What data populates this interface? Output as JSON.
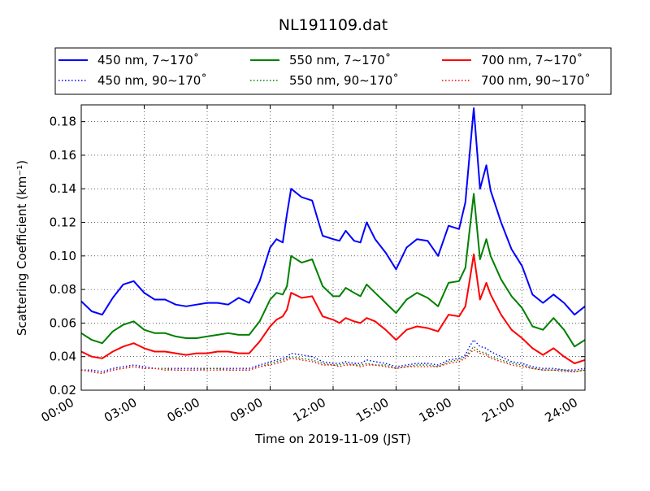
{
  "chart_data": {
    "type": "line",
    "title": "NL191109.dat",
    "xlabel": "Time on 2019-11-09 (JST)",
    "ylabel": "Scattering Coefficient (km⁻¹)",
    "xlim": [
      0,
      24
    ],
    "ylim": [
      0.02,
      0.19
    ],
    "xticks": [
      0,
      3,
      6,
      9,
      12,
      15,
      18,
      21,
      24
    ],
    "xtick_labels": [
      "00:00",
      "03:00",
      "06:00",
      "09:00",
      "12:00",
      "15:00",
      "18:00",
      "21:00",
      "24:00"
    ],
    "yticks": [
      0.02,
      0.04,
      0.06,
      0.08,
      0.1,
      0.12,
      0.14,
      0.16,
      0.18
    ],
    "ytick_labels": [
      "0.02",
      "0.04",
      "0.06",
      "0.08",
      "0.10",
      "0.12",
      "0.14",
      "0.16",
      "0.18"
    ],
    "grid": true,
    "legend_position": "top",
    "x": [
      0,
      0.5,
      1,
      1.5,
      2,
      2.5,
      3,
      3.5,
      4,
      4.5,
      5,
      5.5,
      6,
      6.5,
      7,
      7.5,
      8,
      8.5,
      9,
      9.3,
      9.6,
      9.8,
      10,
      10.5,
      11,
      11.5,
      12,
      12.3,
      12.6,
      13,
      13.3,
      13.6,
      14,
      14.5,
      15,
      15.5,
      16,
      16.5,
      17,
      17.5,
      18,
      18.3,
      18.5,
      18.7,
      19,
      19.3,
      19.5,
      20,
      20.5,
      21,
      21.5,
      22,
      22.5,
      23,
      23.5,
      24
    ],
    "series": [
      {
        "name": "450 nm, 7∼170˚",
        "color": "#0000ff",
        "style": "solid",
        "values": [
          0.073,
          0.067,
          0.065,
          0.075,
          0.083,
          0.085,
          0.078,
          0.074,
          0.074,
          0.071,
          0.07,
          0.071,
          0.072,
          0.072,
          0.071,
          0.075,
          0.072,
          0.085,
          0.105,
          0.11,
          0.108,
          0.125,
          0.14,
          0.135,
          0.133,
          0.112,
          0.11,
          0.109,
          0.115,
          0.109,
          0.108,
          0.12,
          0.11,
          0.102,
          0.092,
          0.105,
          0.11,
          0.109,
          0.1,
          0.118,
          0.116,
          0.132,
          0.16,
          0.188,
          0.14,
          0.154,
          0.139,
          0.12,
          0.104,
          0.094,
          0.077,
          0.072,
          0.077,
          0.072,
          0.065,
          0.07
        ]
      },
      {
        "name": "550 nm, 7∼170˚",
        "color": "#008000",
        "style": "solid",
        "values": [
          0.054,
          0.05,
          0.048,
          0.055,
          0.059,
          0.061,
          0.056,
          0.054,
          0.054,
          0.052,
          0.051,
          0.051,
          0.052,
          0.053,
          0.054,
          0.053,
          0.053,
          0.061,
          0.074,
          0.078,
          0.077,
          0.082,
          0.1,
          0.096,
          0.098,
          0.082,
          0.076,
          0.076,
          0.081,
          0.078,
          0.076,
          0.083,
          0.078,
          0.072,
          0.066,
          0.074,
          0.078,
          0.075,
          0.07,
          0.084,
          0.085,
          0.093,
          0.115,
          0.137,
          0.098,
          0.11,
          0.1,
          0.086,
          0.076,
          0.069,
          0.058,
          0.056,
          0.063,
          0.056,
          0.046,
          0.05
        ]
      },
      {
        "name": "700 nm, 7∼170˚",
        "color": "#ff0000",
        "style": "solid",
        "values": [
          0.043,
          0.04,
          0.039,
          0.043,
          0.046,
          0.048,
          0.045,
          0.043,
          0.043,
          0.042,
          0.041,
          0.042,
          0.042,
          0.043,
          0.043,
          0.042,
          0.042,
          0.049,
          0.058,
          0.062,
          0.064,
          0.068,
          0.078,
          0.075,
          0.076,
          0.064,
          0.062,
          0.06,
          0.063,
          0.061,
          0.06,
          0.063,
          0.061,
          0.056,
          0.05,
          0.056,
          0.058,
          0.057,
          0.055,
          0.065,
          0.064,
          0.07,
          0.085,
          0.101,
          0.074,
          0.084,
          0.077,
          0.065,
          0.056,
          0.051,
          0.045,
          0.041,
          0.045,
          0.04,
          0.036,
          0.038
        ]
      },
      {
        "name": "450 nm, 90∼170˚",
        "color": "#0000ff",
        "style": "dotted",
        "values": [
          0.032,
          0.032,
          0.031,
          0.033,
          0.034,
          0.035,
          0.034,
          0.033,
          0.033,
          0.033,
          0.033,
          0.033,
          0.033,
          0.033,
          0.033,
          0.033,
          0.033,
          0.035,
          0.037,
          0.038,
          0.039,
          0.04,
          0.042,
          0.041,
          0.04,
          0.037,
          0.036,
          0.036,
          0.037,
          0.036,
          0.036,
          0.038,
          0.037,
          0.036,
          0.034,
          0.035,
          0.036,
          0.036,
          0.035,
          0.038,
          0.039,
          0.041,
          0.046,
          0.05,
          0.046,
          0.045,
          0.043,
          0.04,
          0.037,
          0.036,
          0.034,
          0.033,
          0.033,
          0.032,
          0.032,
          0.033
        ]
      },
      {
        "name": "550 nm, 90∼170˚",
        "color": "#008000",
        "style": "dotted",
        "values": [
          0.032,
          0.031,
          0.03,
          0.032,
          0.033,
          0.034,
          0.033,
          0.033,
          0.033,
          0.032,
          0.032,
          0.032,
          0.033,
          0.033,
          0.032,
          0.032,
          0.032,
          0.034,
          0.036,
          0.037,
          0.038,
          0.039,
          0.04,
          0.039,
          0.038,
          0.036,
          0.035,
          0.035,
          0.036,
          0.035,
          0.035,
          0.036,
          0.035,
          0.035,
          0.033,
          0.034,
          0.035,
          0.035,
          0.034,
          0.037,
          0.038,
          0.04,
          0.043,
          0.046,
          0.043,
          0.042,
          0.04,
          0.038,
          0.036,
          0.035,
          0.033,
          0.032,
          0.032,
          0.032,
          0.031,
          0.032
        ]
      },
      {
        "name": "700 nm, 90∼170˚",
        "color": "#ff0000",
        "style": "dotted",
        "values": [
          0.032,
          0.031,
          0.03,
          0.032,
          0.033,
          0.034,
          0.033,
          0.033,
          0.032,
          0.032,
          0.032,
          0.032,
          0.032,
          0.032,
          0.032,
          0.032,
          0.032,
          0.034,
          0.035,
          0.036,
          0.037,
          0.038,
          0.039,
          0.038,
          0.037,
          0.035,
          0.035,
          0.034,
          0.035,
          0.035,
          0.034,
          0.035,
          0.035,
          0.034,
          0.033,
          0.034,
          0.034,
          0.034,
          0.034,
          0.036,
          0.037,
          0.039,
          0.042,
          0.044,
          0.042,
          0.041,
          0.039,
          0.037,
          0.035,
          0.034,
          0.033,
          0.032,
          0.032,
          0.031,
          0.031,
          0.032
        ]
      }
    ]
  }
}
